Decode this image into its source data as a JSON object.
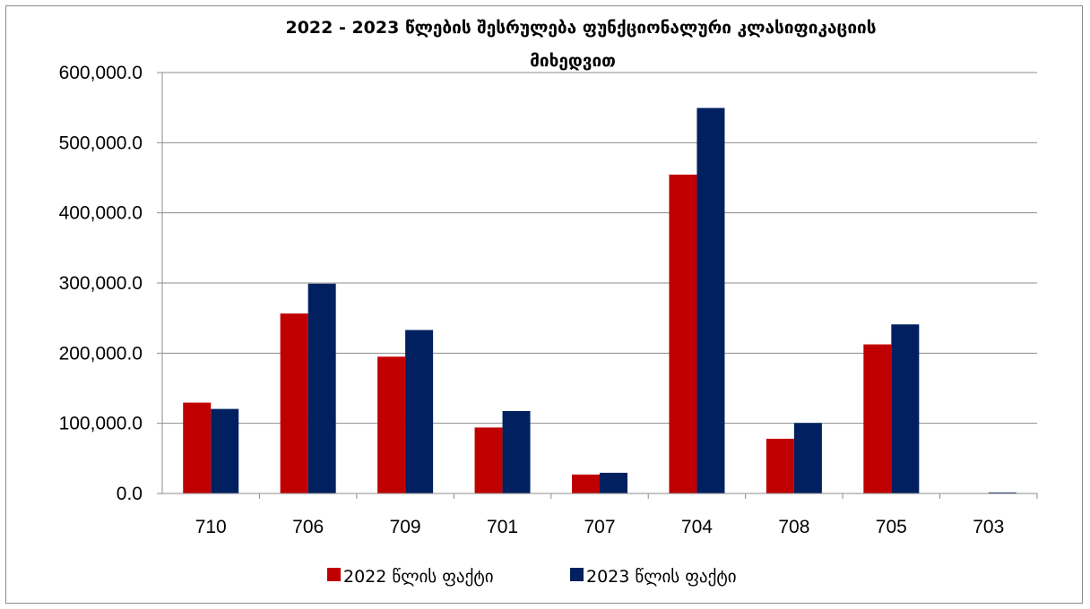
{
  "chart_data": {
    "type": "bar",
    "title_line1": "2022 - 2023 წლების შესრულება ფუნქციონალური კლასიფიკაციის",
    "title_line2": "მიხედვით",
    "categories": [
      "710",
      "706",
      "709",
      "701",
      "707",
      "704",
      "708",
      "705",
      "703"
    ],
    "series": [
      {
        "name": "2022 წლის ფაქტი",
        "color": "#C00000",
        "values": [
          129500,
          256500,
          195000,
          94000,
          27000,
          454500,
          78000,
          212500,
          0
        ]
      },
      {
        "name": "2023 წლის ფაქტი",
        "color": "#002060",
        "values": [
          120500,
          299000,
          233000,
          117500,
          29500,
          549500,
          100500,
          241000,
          1500
        ]
      }
    ],
    "ylim": [
      0,
      600000
    ],
    "y_ticks": [
      "0.0",
      "100,000.0",
      "200,000.0",
      "300,000.0",
      "400,000.0",
      "500,000.0",
      "600,000.0"
    ],
    "grid": true,
    "legend_position": "bottom"
  }
}
